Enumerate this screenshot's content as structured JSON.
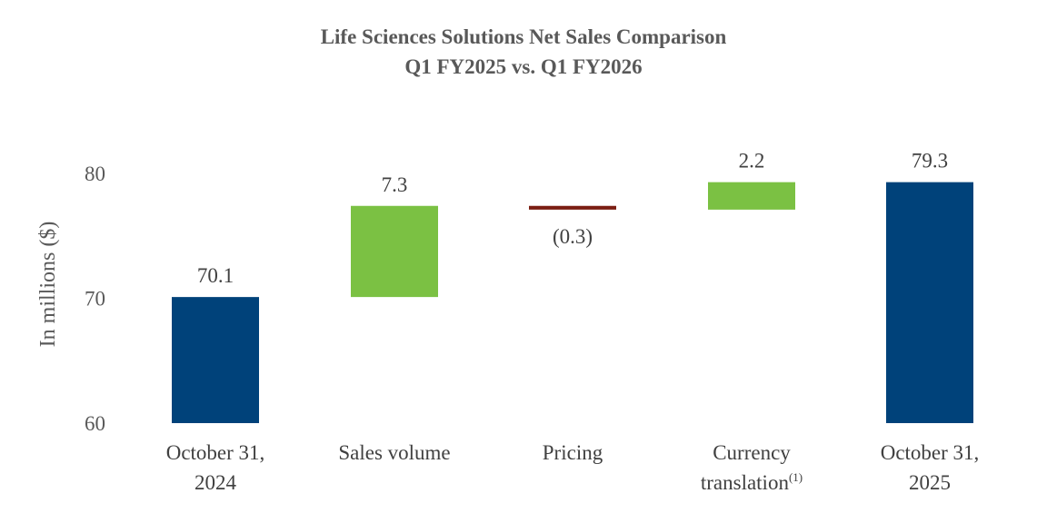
{
  "chart_data": {
    "type": "bar",
    "subtype": "waterfall",
    "title": "Life Sciences Solutions Net Sales Comparison",
    "subtitle": "Q1 FY2025 vs. Q1 FY2026",
    "xlabel": "",
    "ylabel": "In millions ($)",
    "ylim": [
      60,
      80
    ],
    "yticks": [
      60,
      70,
      80
    ],
    "grid": false,
    "colors": {
      "total": "#00427A",
      "increase": "#7BC143",
      "decrease": "#7B1E12"
    },
    "categories": [
      {
        "lines": [
          "October 31,",
          "2024"
        ],
        "sup": ""
      },
      {
        "lines": [
          "Sales volume"
        ],
        "sup": ""
      },
      {
        "lines": [
          "Pricing"
        ],
        "sup": ""
      },
      {
        "lines": [
          "Currency",
          "translation"
        ],
        "sup": "(1)"
      },
      {
        "lines": [
          "October 31,",
          "2025"
        ],
        "sup": ""
      }
    ],
    "bars": [
      {
        "kind": "total",
        "start": 60,
        "end": 70.1,
        "label": "70.1"
      },
      {
        "kind": "increase",
        "start": 70.1,
        "end": 77.4,
        "label": "7.3"
      },
      {
        "kind": "decrease",
        "start": 77.4,
        "end": 77.1,
        "label": "(0.3)"
      },
      {
        "kind": "increase",
        "start": 77.1,
        "end": 79.3,
        "label": "2.2"
      },
      {
        "kind": "total",
        "start": 60,
        "end": 79.3,
        "label": "79.3"
      }
    ]
  }
}
